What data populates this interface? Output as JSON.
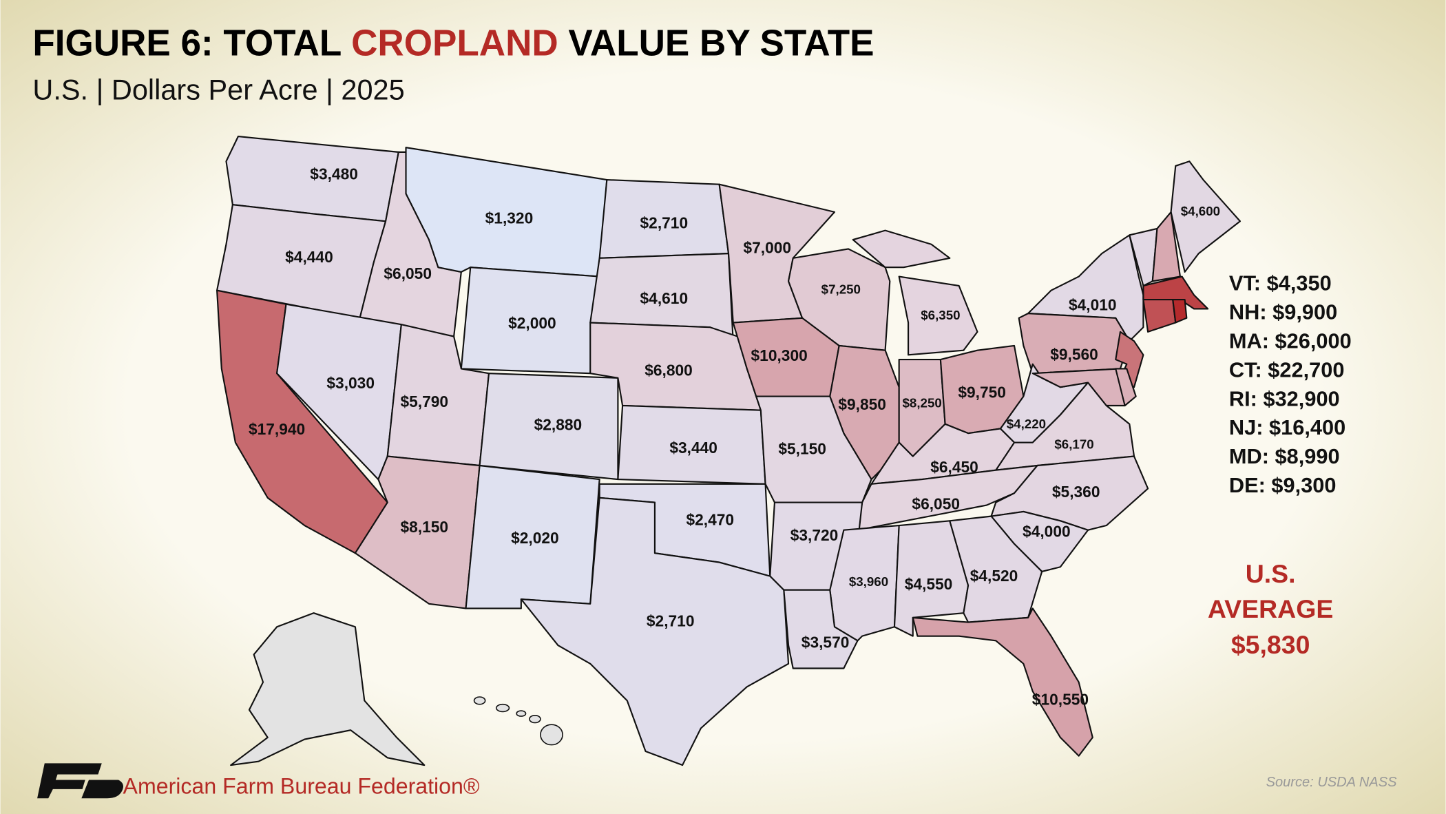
{
  "header": {
    "title": [
      "FIGURE 6: TOTAL ",
      "CROPLAND",
      " VALUE BY STATE"
    ],
    "subtitle": "U.S. | Dollars Per Acre | 2025"
  },
  "map": {
    "values": [
      3480,
      4440,
      6050,
      1320,
      2000,
      2710,
      4610,
      7000,
      7250,
      6350,
      4010,
      4600,
      17940,
      3030,
      5790,
      2880,
      6800,
      10300,
      9850,
      8250,
      9750,
      9560,
      4220,
      6170,
      3440,
      5150,
      6450,
      6050,
      5360,
      8150,
      2020,
      2470,
      3720,
      4000,
      3960,
      4550,
      4520,
      2710,
      3570,
      10550
    ],
    "value_labels": [
      "$3,480",
      "$4,440",
      "$6,050",
      "$1,320",
      "$2,000",
      "$2,710",
      "$4,610",
      "$7,000",
      "$7,250",
      "$6,350",
      "$4,010",
      "$4,600",
      "$17,940",
      "$3,030",
      "$5,790",
      "$2,880",
      "$6,800",
      "$10,300",
      "$9,850",
      "$8,250",
      "$9,750",
      "$9,560",
      "$4,220",
      "$6,170",
      "$3,440",
      "$5,150",
      "$6,450",
      "$6,050",
      "$5,360",
      "$8,150",
      "$2,020",
      "$2,470",
      "$3,720",
      "$4,000",
      "$3,960",
      "$4,550",
      "$4,520",
      "$2,710",
      "$3,570",
      "$10,550"
    ],
    "colors": [
      "#dde5f6",
      "#e4d4de",
      "#b52a2c"
    ]
  },
  "inset": {
    "values": [
      4350,
      9900,
      26000,
      22700,
      32900,
      16400,
      8990,
      9300
    ],
    "labels": [
      "VT: $4,350",
      "NH: $9,900",
      "MA: $26,000",
      "CT: $22,700",
      "RI: $32,900",
      "NJ: $16,400",
      "MD: $8,990",
      "DE: $9,300"
    ]
  },
  "average": {
    "label": [
      "U.S.",
      "AVERAGE"
    ],
    "value": 5830,
    "value_label": "$5,830"
  },
  "source": "Source: USDA NASS",
  "logo": "American Farm Bureau Federation®"
}
